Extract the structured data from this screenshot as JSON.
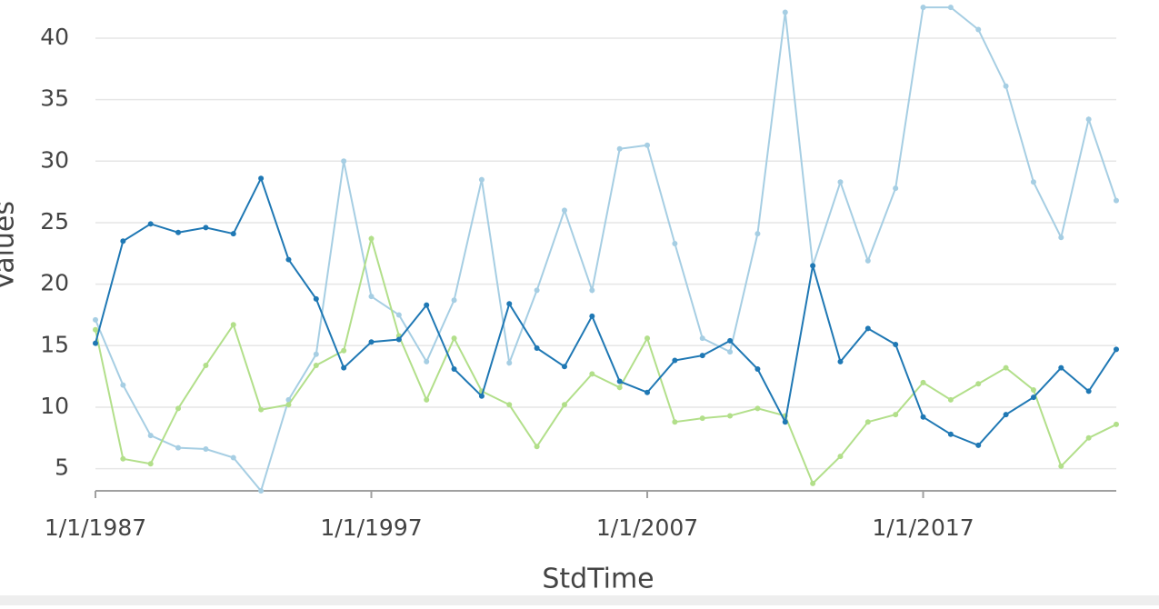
{
  "chart_data": {
    "type": "line",
    "x_label": "StdTime",
    "y_label": "Values",
    "x": [
      "1/1/1987",
      "1/1/1988",
      "1/1/1989",
      "1/1/1990",
      "1/1/1991",
      "1/1/1992",
      "1/1/1993",
      "1/1/1994",
      "1/1/1995",
      "1/1/1996",
      "1/1/1997",
      "1/1/1998",
      "1/1/1999",
      "1/1/2000",
      "1/1/2001",
      "1/1/2002",
      "1/1/2003",
      "1/1/2004",
      "1/1/2005",
      "1/1/2006",
      "1/1/2007",
      "1/1/2008",
      "1/1/2009",
      "1/1/2010",
      "1/1/2011",
      "1/1/2012",
      "1/1/2013",
      "1/1/2014",
      "1/1/2015",
      "1/1/2016",
      "1/1/2017",
      "1/1/2018",
      "1/1/2019",
      "1/1/2020",
      "1/1/2021",
      "1/1/2022",
      "1/1/2023",
      "1/1/2024"
    ],
    "xticks": [
      "1/1/1987",
      "1/1/1997",
      "1/1/2007",
      "1/1/2017"
    ],
    "ylim": [
      3.2,
      43.1
    ],
    "yticks": [
      5,
      10,
      15,
      20,
      25,
      30,
      35,
      40
    ],
    "grid": true,
    "series": [
      {
        "color": "#a6cee3",
        "values": [
          17.1,
          11.8,
          7.7,
          6.7,
          6.6,
          5.9,
          3.2,
          10.6,
          14.3,
          30.0,
          19.0,
          17.5,
          13.7,
          18.7,
          28.5,
          13.6,
          19.5,
          26.0,
          19.5,
          31.0,
          31.3,
          23.3,
          15.6,
          14.5,
          24.1,
          42.1,
          21.5,
          28.3,
          21.9,
          27.8,
          42.5,
          42.5,
          40.7,
          36.1,
          28.3,
          23.8,
          33.4,
          26.8
        ]
      },
      {
        "color": "#b2df8a",
        "values": [
          16.3,
          5.8,
          5.4,
          9.9,
          13.4,
          16.7,
          9.8,
          10.2,
          13.4,
          14.6,
          23.7,
          15.8,
          10.6,
          15.6,
          11.3,
          10.2,
          6.8,
          10.2,
          12.7,
          11.6,
          15.6,
          8.8,
          9.1,
          9.3,
          9.9,
          9.3,
          3.8,
          6.0,
          8.8,
          9.4,
          12.0,
          10.6,
          11.9,
          13.2,
          11.4,
          5.2,
          7.5,
          8.6
        ]
      },
      {
        "color": "#1f78b4",
        "values": [
          15.2,
          23.5,
          24.9,
          24.2,
          24.6,
          24.1,
          28.6,
          22.0,
          18.8,
          13.2,
          15.3,
          15.5,
          18.3,
          13.1,
          10.9,
          18.4,
          14.8,
          13.3,
          17.4,
          12.1,
          11.2,
          13.8,
          14.2,
          15.4,
          13.1,
          8.8,
          21.5,
          13.7,
          16.4,
          15.1,
          9.2,
          7.8,
          6.9,
          9.4,
          10.8,
          13.2,
          11.3,
          14.7
        ]
      }
    ]
  }
}
